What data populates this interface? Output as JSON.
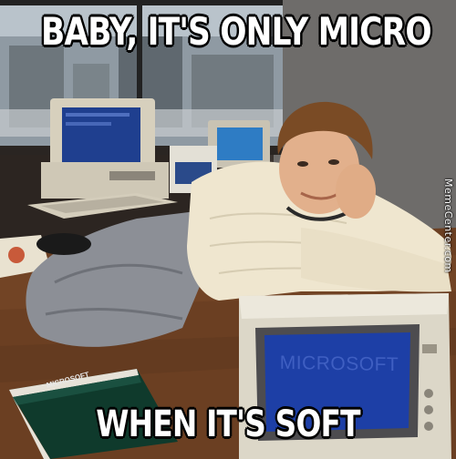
{
  "meme": {
    "top_caption": "BABY, IT'S ONLY MICRO",
    "bottom_caption": "WHEN IT'S SOFT",
    "watermark": "MemeCenter.com",
    "monitor_screen_text": "MICROSOFT",
    "book_label": "MICROSOFT"
  },
  "colors": {
    "caption_fill": "#ffffff",
    "caption_outline": "#000000",
    "monitor_screen": "#1d3fa6",
    "desk": "#6b3f22",
    "sweater": "#efe6cf"
  }
}
